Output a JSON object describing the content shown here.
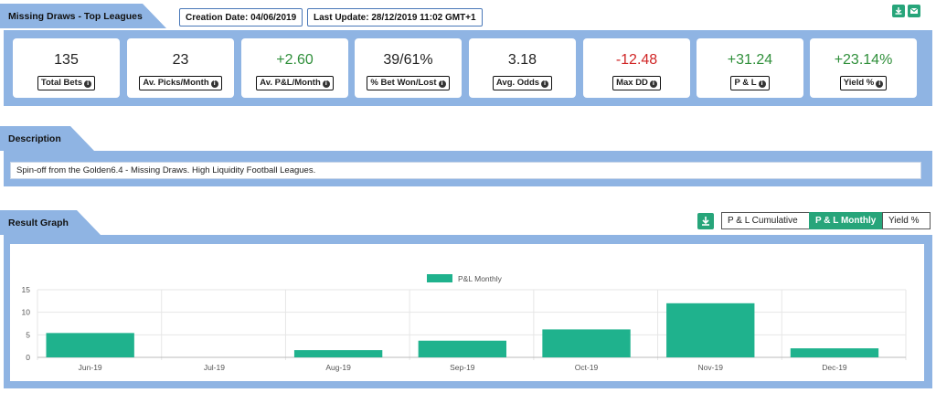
{
  "header": {
    "title": "Missing Draws - Top Leagues",
    "creation_date": "Creation Date: 04/06/2019",
    "last_update": "Last Update: 28/12/2019 11:02 GMT+1"
  },
  "icons": {
    "download": "download-icon",
    "mail": "mail-icon",
    "info": "info-icon"
  },
  "stats": [
    {
      "value": "135",
      "label": "Total Bets",
      "tone": "neutral"
    },
    {
      "value": "23",
      "label": "Av. Picks/Month",
      "tone": "neutral"
    },
    {
      "value": "+2.60",
      "label": "Av. P&L/Month",
      "tone": "pos"
    },
    {
      "value": "39/61%",
      "label": "% Bet Won/Lost",
      "tone": "neutral"
    },
    {
      "value": "3.18",
      "label": "Avg. Odds",
      "tone": "neutral"
    },
    {
      "value": "-12.48",
      "label": "Max DD",
      "tone": "neg"
    },
    {
      "value": "+31.24",
      "label": "P & L",
      "tone": "pos"
    },
    {
      "value": "+23.14%",
      "label": "Yield %",
      "tone": "pos"
    }
  ],
  "description": {
    "title": "Description",
    "text": "Spin-off from the Golden6.4 - Missing Draws. High Liquidity Football Leagues."
  },
  "graph": {
    "title": "Result Graph",
    "buttons": [
      "P & L Cumulative",
      "P & L Monthly",
      "Yield %"
    ],
    "active_button": "P & L Monthly"
  },
  "colors": {
    "accent": "#27a57a",
    "panel": "#8fb4e3",
    "positive": "#2f8f3a",
    "negative": "#d02525"
  },
  "chart_data": {
    "type": "bar",
    "title": "",
    "legend": "P&L Monthly",
    "legend_position": "top-center",
    "categories": [
      "Jun-19",
      "Jul-19",
      "Aug-19",
      "Sep-19",
      "Oct-19",
      "Nov-19",
      "Dec-19"
    ],
    "values": [
      5.4,
      0,
      1.6,
      3.7,
      6.2,
      12.0,
      2.0
    ],
    "ylim": [
      0,
      15
    ],
    "yticks": [
      0,
      5,
      10,
      15
    ],
    "grid": true,
    "color": "#1fb28d"
  }
}
